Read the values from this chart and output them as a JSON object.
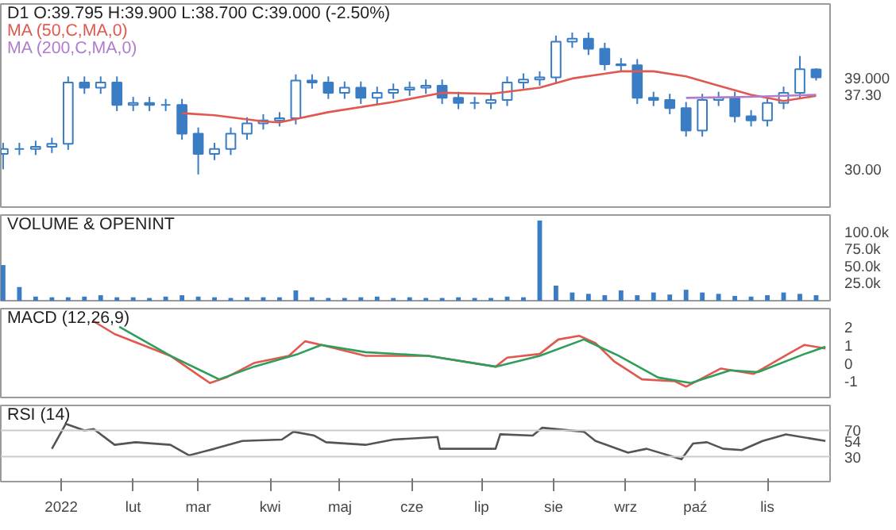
{
  "chart_data": [
    {
      "type": "candlestick",
      "title": "D1 O:39.795 H:39.900 L:38.700 C:39.000 (-2.50%)",
      "color": "#3a7dc4",
      "x": [
        "2021-12-07",
        "2021-12-14",
        "2021-12-21",
        "2021-12-28",
        "2022-01-04",
        "2022-01-11",
        "2022-01-18",
        "2022-01-25",
        "2022-02-01",
        "2022-02-08",
        "2022-02-15",
        "2022-02-22",
        "2022-03-01",
        "2022-03-08",
        "2022-03-15",
        "2022-03-22",
        "2022-03-29",
        "2022-04-05",
        "2022-04-12",
        "2022-04-19",
        "2022-04-26",
        "2022-05-03",
        "2022-05-10",
        "2022-05-17",
        "2022-05-24",
        "2022-05-31",
        "2022-06-07",
        "2022-06-14",
        "2022-06-21",
        "2022-06-28",
        "2022-07-05",
        "2022-07-12",
        "2022-07-19",
        "2022-07-26",
        "2022-08-02",
        "2022-08-09",
        "2022-08-16",
        "2022-08-23",
        "2022-08-30",
        "2022-09-06",
        "2022-09-13",
        "2022-09-20",
        "2022-09-27",
        "2022-10-04",
        "2022-10-11",
        "2022-10-18",
        "2022-10-25",
        "2022-11-01",
        "2022-11-08",
        "2022-11-15",
        "2022-11-22"
      ],
      "ohlc": [
        [
          31.5,
          32.6,
          30.0,
          32.0
        ],
        [
          32.0,
          32.6,
          31.4,
          32.0
        ],
        [
          32.0,
          32.8,
          31.4,
          32.2
        ],
        [
          32.2,
          33.1,
          31.6,
          32.5
        ],
        [
          32.5,
          39.1,
          31.9,
          38.5
        ],
        [
          38.5,
          39.1,
          37.4,
          38.0
        ],
        [
          38.0,
          39.1,
          37.4,
          38.5
        ],
        [
          38.5,
          39.1,
          35.7,
          36.3
        ],
        [
          36.3,
          37.1,
          35.7,
          36.5
        ],
        [
          36.5,
          37.1,
          35.7,
          36.3
        ],
        [
          36.3,
          36.9,
          35.7,
          36.3
        ],
        [
          36.3,
          36.9,
          32.9,
          33.5
        ],
        [
          33.5,
          34.1,
          29.5,
          31.5
        ],
        [
          31.5,
          32.6,
          30.9,
          32.0
        ],
        [
          32.0,
          34.1,
          31.4,
          33.5
        ],
        [
          33.5,
          35.1,
          32.9,
          34.5
        ],
        [
          34.5,
          35.4,
          33.9,
          34.8
        ],
        [
          34.8,
          35.6,
          34.2,
          35.0
        ],
        [
          35.0,
          39.3,
          34.4,
          38.7
        ],
        [
          38.7,
          39.3,
          37.9,
          38.5
        ],
        [
          38.5,
          39.1,
          36.9,
          37.5
        ],
        [
          37.5,
          38.6,
          36.9,
          38.0
        ],
        [
          38.0,
          38.6,
          36.4,
          37.0
        ],
        [
          37.0,
          38.1,
          36.4,
          37.5
        ],
        [
          37.5,
          38.4,
          36.9,
          37.8
        ],
        [
          37.8,
          38.6,
          37.2,
          38.0
        ],
        [
          38.0,
          38.8,
          37.4,
          38.2
        ],
        [
          38.2,
          38.8,
          36.4,
          37.0
        ],
        [
          37.0,
          37.6,
          35.9,
          36.5
        ],
        [
          36.5,
          37.1,
          35.9,
          36.5
        ],
        [
          36.5,
          37.4,
          35.9,
          36.8
        ],
        [
          36.8,
          39.1,
          36.2,
          38.5
        ],
        [
          38.5,
          39.4,
          37.9,
          38.8
        ],
        [
          38.8,
          39.6,
          38.2,
          39.0
        ],
        [
          39.0,
          43.1,
          38.4,
          42.5
        ],
        [
          42.5,
          43.4,
          41.9,
          42.8
        ],
        [
          42.8,
          43.4,
          41.2,
          41.8
        ],
        [
          41.8,
          42.4,
          39.7,
          40.3
        ],
        [
          40.3,
          40.9,
          39.6,
          40.2
        ],
        [
          40.2,
          40.8,
          36.4,
          37.0
        ],
        [
          37.0,
          37.6,
          36.2,
          36.8
        ],
        [
          36.8,
          37.4,
          35.4,
          36.0
        ],
        [
          36.0,
          36.6,
          33.2,
          33.8
        ],
        [
          33.8,
          37.4,
          33.2,
          36.8
        ],
        [
          36.8,
          37.6,
          36.2,
          37.0
        ],
        [
          37.0,
          37.6,
          34.6,
          35.2
        ],
        [
          35.2,
          35.8,
          34.2,
          34.8
        ],
        [
          34.8,
          37.1,
          34.2,
          36.5
        ],
        [
          36.5,
          38.1,
          35.9,
          37.5
        ],
        [
          37.5,
          41.1,
          36.9,
          39.8
        ],
        [
          39.795,
          39.9,
          38.7,
          39.0
        ]
      ],
      "series": [
        {
          "type": "line",
          "name": "MA (50,C,MA,0)",
          "color": "#e0584f",
          "x": [
            "2022-02-22",
            "2022-03-08",
            "2022-03-29",
            "2022-04-05",
            "2022-04-26",
            "2022-05-24",
            "2022-06-14",
            "2022-07-05",
            "2022-07-26",
            "2022-08-09",
            "2022-08-30",
            "2022-09-13",
            "2022-09-27",
            "2022-10-11",
            "2022-10-25",
            "2022-11-08",
            "2022-11-22"
          ],
          "values": [
            35.5,
            35.3,
            34.7,
            34.6,
            35.6,
            36.6,
            37.5,
            37.4,
            38.0,
            38.9,
            39.6,
            39.6,
            39.1,
            38.2,
            37.3,
            36.7,
            37.2
          ]
        },
        {
          "type": "line",
          "name": "MA (200,C,MA,0)",
          "color": "#b07ccc",
          "x": [
            "2022-09-27",
            "2022-10-25",
            "2022-11-22"
          ],
          "values": [
            37.0,
            37.1,
            37.3
          ]
        }
      ],
      "xlim": [
        "2021-12-06",
        "2022-11-28"
      ],
      "ylim": [
        26.3,
        46.2
      ],
      "yticks": [
        {
          "value": 30,
          "label": "30.00"
        },
        {
          "value": 37.3,
          "label": "37.30"
        },
        {
          "value": 39.0,
          "label": "39.000"
        }
      ],
      "tick_labels": "y",
      "grid": false
    },
    {
      "type": "bar",
      "title": "VOLUME & OPENINT",
      "color": "#3a7dc4",
      "x": [
        "2021-12-07",
        "2021-12-14",
        "2021-12-21",
        "2021-12-28",
        "2022-01-04",
        "2022-01-11",
        "2022-01-18",
        "2022-01-25",
        "2022-02-01",
        "2022-02-08",
        "2022-02-15",
        "2022-02-22",
        "2022-03-01",
        "2022-03-08",
        "2022-03-15",
        "2022-03-22",
        "2022-03-29",
        "2022-04-05",
        "2022-04-12",
        "2022-04-19",
        "2022-04-26",
        "2022-05-03",
        "2022-05-10",
        "2022-05-17",
        "2022-05-24",
        "2022-05-31",
        "2022-06-07",
        "2022-06-14",
        "2022-06-21",
        "2022-06-28",
        "2022-07-05",
        "2022-07-12",
        "2022-07-19",
        "2022-07-26",
        "2022-08-02",
        "2022-08-09",
        "2022-08-16",
        "2022-08-23",
        "2022-08-30",
        "2022-09-06",
        "2022-09-13",
        "2022-09-20",
        "2022-09-27",
        "2022-10-04",
        "2022-10-11",
        "2022-10-18",
        "2022-10-25",
        "2022-11-01",
        "2022-11-08",
        "2022-11-15",
        "2022-11-22"
      ],
      "values": [
        52000,
        20000,
        6000,
        5000,
        5000,
        6000,
        8000,
        5000,
        5000,
        4000,
        6000,
        8000,
        6000,
        5000,
        4000,
        5000,
        5000,
        5000,
        15000,
        5000,
        4000,
        4000,
        5000,
        6000,
        4000,
        5000,
        4000,
        4000,
        5000,
        4000,
        4000,
        6000,
        5000,
        117000,
        22000,
        12000,
        10000,
        8000,
        15000,
        8000,
        12000,
        9000,
        16000,
        12000,
        10000,
        7000,
        6000,
        8000,
        12000,
        10000,
        8000
      ],
      "xlim": [
        "2021-12-06",
        "2022-11-28"
      ],
      "ylim": [
        0,
        125000
      ],
      "yticks": [
        {
          "value": 25000,
          "label": "25.0k"
        },
        {
          "value": 50000,
          "label": "50.0k"
        },
        {
          "value": 75000,
          "label": "75.0k"
        },
        {
          "value": 100000,
          "label": "100.0k"
        }
      ],
      "tick_labels": "y",
      "grid": false
    },
    {
      "type": "line",
      "title": "MACD (12,26,9)",
      "series": [
        {
          "color": "#e0584f",
          "x": [
            "2022-01-15",
            "2022-01-24",
            "2022-02-17",
            "2022-03-06",
            "2022-03-13",
            "2022-03-25",
            "2022-04-09",
            "2022-04-16",
            "2022-04-23",
            "2022-05-12",
            "2022-06-08",
            "2022-07-07",
            "2022-07-12",
            "2022-07-26",
            "2022-08-03",
            "2022-08-12",
            "2022-08-19",
            "2022-08-27",
            "2022-09-08",
            "2022-09-22",
            "2022-09-27",
            "2022-10-12",
            "2022-10-26",
            "2022-11-10",
            "2022-11-17",
            "2022-11-26"
          ],
          "values": [
            2.3,
            1.6,
            0.4,
            -1.1,
            -0.8,
            0.0,
            0.4,
            1.2,
            1.0,
            0.4,
            0.4,
            -0.2,
            0.3,
            0.5,
            1.3,
            1.5,
            1.1,
            0.1,
            -0.9,
            -1.0,
            -1.3,
            -0.3,
            -0.6,
            0.5,
            1.0,
            0.8
          ]
        },
        {
          "color": "#2e9e5b",
          "x": [
            "2022-01-26",
            "2022-02-17",
            "2022-03-10",
            "2022-03-25",
            "2022-04-13",
            "2022-04-23",
            "2022-05-12",
            "2022-06-08",
            "2022-07-07",
            "2022-07-26",
            "2022-08-14",
            "2022-08-29",
            "2022-09-15",
            "2022-09-29",
            "2022-10-16",
            "2022-10-28",
            "2022-11-17",
            "2022-11-26"
          ],
          "values": [
            2.0,
            0.4,
            -0.9,
            -0.2,
            0.5,
            1.0,
            0.6,
            0.4,
            -0.2,
            0.4,
            1.3,
            0.4,
            -0.8,
            -1.1,
            -0.4,
            -0.5,
            0.5,
            0.9
          ]
        }
      ],
      "xlim": [
        "2021-12-06",
        "2022-11-28"
      ],
      "ylim": [
        -1.9,
        3.0
      ],
      "yticks": [
        -1,
        0,
        1,
        2
      ],
      "tick_labels": "y",
      "grid": false
    },
    {
      "type": "line",
      "title": "RSI (14)",
      "series": [
        {
          "color": "#555555",
          "x": [
            "2021-12-28",
            "2022-01-03",
            "2022-01-11",
            "2022-01-15",
            "2022-01-24",
            "2022-02-02",
            "2022-02-17",
            "2022-02-25",
            "2022-03-08",
            "2022-03-20",
            "2022-04-06",
            "2022-04-11",
            "2022-04-20",
            "2022-04-25",
            "2022-05-12",
            "2022-05-24",
            "2022-06-12",
            "2022-06-13",
            "2022-07-07",
            "2022-07-09",
            "2022-07-23",
            "2022-07-27",
            "2022-08-14",
            "2022-08-19",
            "2022-09-02",
            "2022-09-10",
            "2022-09-25",
            "2022-09-30",
            "2022-10-06",
            "2022-10-13",
            "2022-10-21",
            "2022-10-30",
            "2022-11-09",
            "2022-11-19",
            "2022-11-26"
          ],
          "values": [
            42,
            80,
            70,
            72,
            48,
            52,
            48,
            32,
            42,
            54,
            56,
            68,
            62,
            52,
            48,
            56,
            60,
            42,
            42,
            64,
            62,
            74,
            68,
            54,
            36,
            42,
            26,
            50,
            52,
            42,
            40,
            54,
            64,
            58,
            54
          ]
        }
      ],
      "ref_lines": [
        {
          "axis": "y",
          "value": 30,
          "color": "#cccccc"
        },
        {
          "axis": "y",
          "value": 70,
          "color": "#cccccc"
        }
      ],
      "xlim": [
        "2021-12-06",
        "2022-11-28"
      ],
      "ylim": [
        -8,
        108
      ],
      "yticks": [
        30,
        54,
        70
      ],
      "grid": false,
      "xticks": [
        {
          "value": "2022-01-01",
          "label": "2022"
        },
        {
          "value": "2022-02-01",
          "label": "lut"
        },
        {
          "value": "2022-03-01",
          "label": "mar"
        },
        {
          "value": "2022-04-01",
          "label": "kwi"
        },
        {
          "value": "2022-05-01",
          "label": "maj"
        },
        {
          "value": "2022-06-01",
          "label": "cze"
        },
        {
          "value": "2022-07-01",
          "label": "lip"
        },
        {
          "value": "2022-08-01",
          "label": "sie"
        },
        {
          "value": "2022-09-01",
          "label": "wrz"
        },
        {
          "value": "2022-10-01",
          "label": "paź"
        },
        {
          "value": "2022-11-01",
          "label": "lis"
        }
      ]
    }
  ]
}
